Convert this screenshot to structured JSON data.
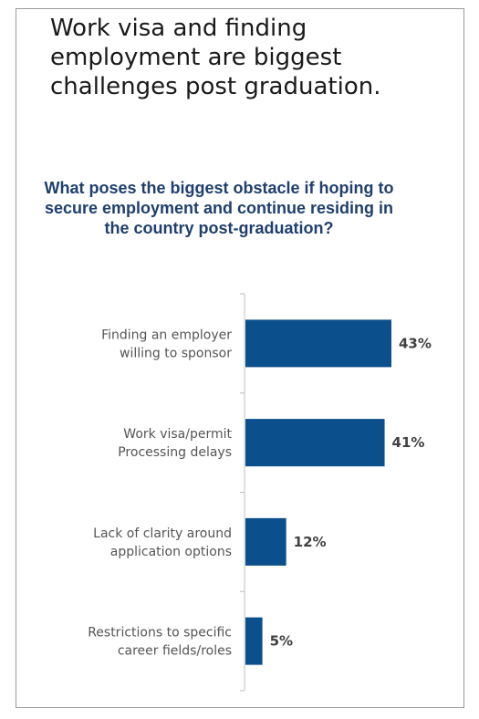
{
  "headline": "Work visa and finding employment are biggest challenges post graduation.",
  "chart_data": {
    "type": "bar",
    "orientation": "horizontal",
    "title": "What poses the biggest obstacle if hoping to secure employment and continue residing in the country post-graduation?",
    "categories": [
      [
        "Finding an employer",
        "willing to sponsor"
      ],
      [
        "Work visa/permit",
        "Processing delays"
      ],
      [
        "Lack of clarity around",
        "application options"
      ],
      [
        "Restrictions to specific",
        "career fields/roles"
      ]
    ],
    "values": [
      43,
      41,
      12,
      5
    ],
    "value_labels": [
      "43%",
      "41%",
      "12%",
      "5%"
    ],
    "unit": "%",
    "bar_color": "#0b4f8c",
    "grid": false,
    "legend": "none"
  }
}
